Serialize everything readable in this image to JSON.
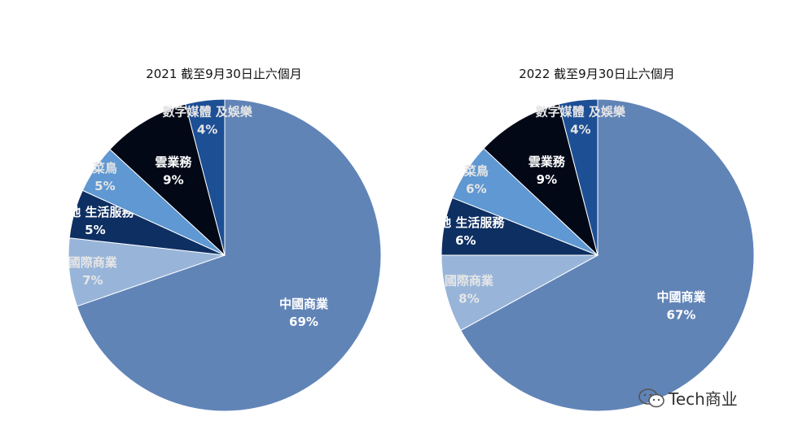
{
  "watermark": {
    "text": "Tech商业",
    "icon": "wechat-icon"
  },
  "chart_data": [
    {
      "type": "pie",
      "title": "2021 截至9月30日止六個月",
      "slices": [
        {
          "label": "中國商業",
          "value": 69,
          "display": "69%",
          "color": "#6184b7",
          "label_color": "#ffffff"
        },
        {
          "label": "國際商業",
          "value": 7,
          "display": "7%",
          "color": "#98b5d9",
          "label_color": "#e6e6e6"
        },
        {
          "label": "本地 生活服務",
          "value": 5,
          "display": "5%",
          "color": "#0e2f62",
          "label_color": "#ffffff"
        },
        {
          "label": "菜鳥",
          "value": 5,
          "display": "5%",
          "color": "#5f98d2",
          "label_color": "#e6e6e6"
        },
        {
          "label": "雲業務",
          "value": 9,
          "display": "9%",
          "color": "#020816",
          "label_color": "#ffffff"
        },
        {
          "label": "數字媒體 及娛樂",
          "value": 4,
          "display": "4%",
          "color": "#1d4f95",
          "label_color": "#e6e6e6"
        }
      ]
    },
    {
      "type": "pie",
      "title": "2022  截至9月30日止六個月",
      "slices": [
        {
          "label": "中國商業",
          "value": 67,
          "display": "67%",
          "color": "#6184b7",
          "label_color": "#ffffff"
        },
        {
          "label": "國際商業",
          "value": 8,
          "display": "8%",
          "color": "#98b5d9",
          "label_color": "#e6e6e6"
        },
        {
          "label": "本地 生活服務",
          "value": 6,
          "display": "6%",
          "color": "#0e2f62",
          "label_color": "#ffffff"
        },
        {
          "label": "菜鳥",
          "value": 6,
          "display": "6%",
          "color": "#5f98d2",
          "label_color": "#e6e6e6"
        },
        {
          "label": "雲業務",
          "value": 9,
          "display": "9%",
          "color": "#020816",
          "label_color": "#ffffff"
        },
        {
          "label": "數字媒體 及娛樂",
          "value": 4,
          "display": "4%",
          "color": "#1d4f95",
          "label_color": "#e6e6e6"
        }
      ]
    }
  ]
}
